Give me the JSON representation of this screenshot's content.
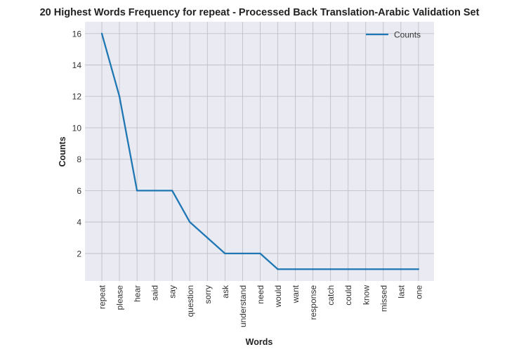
{
  "chart_data": {
    "type": "line",
    "title": "20 Highest Words Frequency for repeat - Processed Back Translation-Arabic Validation Set",
    "xlabel": "Words",
    "ylabel": "Counts",
    "categories": [
      "repeat",
      "please",
      "hear",
      "said",
      "say",
      "question",
      "sorry",
      "ask",
      "understand",
      "need",
      "would",
      "want",
      "response",
      "catch",
      "could",
      "know",
      "missed",
      "last",
      "one"
    ],
    "series": [
      {
        "name": "Counts",
        "values": [
          16,
          12,
          6,
          6,
          6,
          4,
          3,
          2,
          2,
          2,
          1,
          1,
          1,
          1,
          1,
          1,
          1,
          1,
          1
        ]
      }
    ],
    "yticks": [
      2,
      4,
      6,
      8,
      10,
      12,
      14,
      16
    ],
    "ylim": [
      0.25,
      16.75
    ],
    "grid": true,
    "legend_position": "top-right",
    "colors": {
      "line": "#1f77b4",
      "background": "#eaeaf2",
      "grid": "#c0c0c8"
    }
  }
}
